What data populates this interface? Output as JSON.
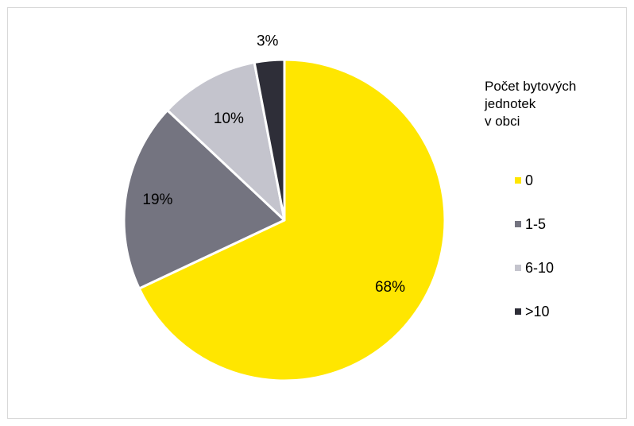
{
  "chart_data": {
    "type": "pie",
    "legend_title": "Počet bytových\njednotek\nv obci",
    "legend_position": "right",
    "start_angle_deg": 0,
    "direction": "clockwise",
    "slices": [
      {
        "label": "0",
        "value": 68,
        "display": "68%",
        "color": "#FFE600"
      },
      {
        "label": "1-5",
        "value": 19,
        "display": "19%",
        "color": "#747480"
      },
      {
        "label": "6-10",
        "value": 10,
        "display": "10%",
        "color": "#C4C4CD"
      },
      {
        "label": ">10",
        "value": 3,
        "display": "3%",
        "color": "#2E2E38"
      }
    ]
  }
}
